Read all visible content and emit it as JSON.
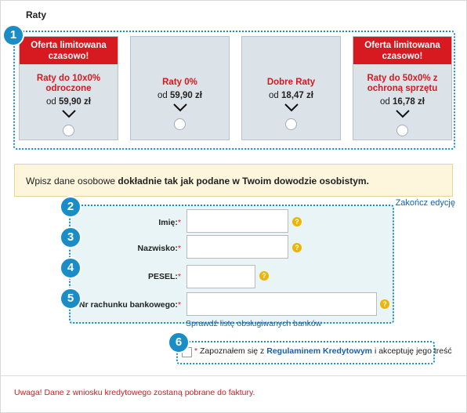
{
  "title": "Raty",
  "badges": [
    "1",
    "2",
    "3",
    "4",
    "5",
    "6"
  ],
  "offers": [
    {
      "header": "Oferta limitowana czasowo!",
      "title": "Raty do 10x0% odroczone",
      "price_prefix": "od",
      "price": "59,90 zł"
    },
    {
      "title": "Raty 0%",
      "price_prefix": "od",
      "price": "59,90 zł"
    },
    {
      "title": "Dobre Raty",
      "price_prefix": "od",
      "price": "18,47 zł"
    },
    {
      "header": "Oferta limitowana czasowo!",
      "title": "Raty do 50x0% z ochroną sprzętu",
      "price_prefix": "od",
      "price": "16,78 zł"
    }
  ],
  "notice": {
    "text": "Wpisz dane osobowe",
    "bold": "dokładnie tak jak podane w Twoim dowodzie osobistym."
  },
  "finish_edit": "Zakończ edycję",
  "form": {
    "required_mark": "*",
    "help": "?",
    "fields": [
      "Imię:",
      "Nazwisko:",
      "PESEL:",
      "Nr rachunku bankowego:"
    ],
    "banks_link": "Sprawdź listę obsługiwanych banków"
  },
  "consent": {
    "text_before": "Zapoznałem się z",
    "link": "Regulaminem Kredytowym",
    "text_after": "i akceptuję jego treść"
  },
  "warning": "Uwaga! Dane z wniosku kredytowego zostaną pobrane do faktury."
}
